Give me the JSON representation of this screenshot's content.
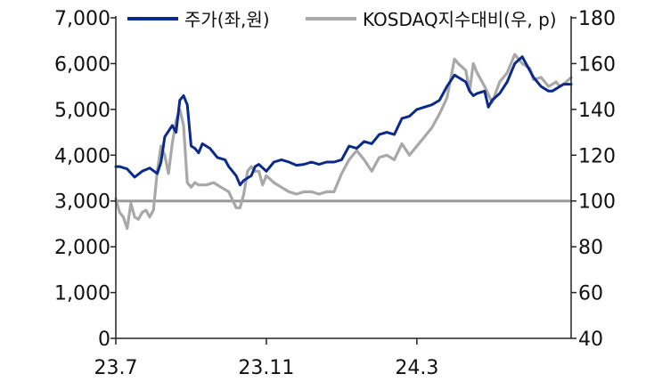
{
  "chart_data": {
    "type": "line",
    "title": "",
    "xlabel": "",
    "legend_position": "top",
    "grid": false,
    "x_tick_labels": [
      "23.7",
      "23.11",
      "24.3"
    ],
    "x_tick_months": [
      0,
      4,
      8
    ],
    "x_range_months": [
      0,
      12.1
    ],
    "y_left": {
      "range": [
        0,
        7000
      ],
      "ticks": [
        "0",
        "1,000",
        "2,000",
        "3,000",
        "4,000",
        "5,000",
        "6,000",
        "7,000"
      ]
    },
    "y_right": {
      "range": [
        40,
        180
      ],
      "ticks": [
        "40",
        "60",
        "80",
        "100",
        "120",
        "140",
        "160",
        "180"
      ]
    },
    "reference_line": {
      "axis": "right",
      "value": 100,
      "color": "#9a9a9a"
    },
    "series": [
      {
        "name": "주가(좌,원)",
        "axis": "left",
        "color": "#0b2a8a",
        "x": [
          0,
          0.1,
          0.3,
          0.5,
          0.7,
          0.9,
          1.1,
          1.2,
          1.3,
          1.5,
          1.6,
          1.7,
          1.8,
          1.9,
          2.0,
          2.1,
          2.2,
          2.3,
          2.5,
          2.7,
          2.9,
          3.0,
          3.2,
          3.3,
          3.4,
          3.5,
          3.6,
          3.7,
          3.8,
          4.0,
          4.2,
          4.4,
          4.6,
          4.8,
          5.0,
          5.2,
          5.4,
          5.6,
          5.8,
          6.0,
          6.2,
          6.4,
          6.6,
          6.8,
          7.0,
          7.2,
          7.4,
          7.6,
          7.8,
          8.0,
          8.2,
          8.4,
          8.6,
          8.8,
          9.0,
          9.1,
          9.3,
          9.4,
          9.5,
          9.6,
          9.8,
          9.9,
          10.0,
          10.2,
          10.4,
          10.6,
          10.8,
          11.0,
          11.1,
          11.2,
          11.3,
          11.4,
          11.5,
          11.6,
          11.7,
          11.8,
          11.9,
          12.1
        ],
        "values": [
          3750,
          3750,
          3700,
          3520,
          3650,
          3720,
          3600,
          3850,
          4400,
          4650,
          4500,
          5200,
          5300,
          5100,
          4200,
          4150,
          4050,
          4250,
          4150,
          3950,
          3900,
          3750,
          3550,
          3350,
          3450,
          3500,
          3550,
          3750,
          3800,
          3650,
          3850,
          3900,
          3850,
          3780,
          3800,
          3850,
          3800,
          3850,
          3850,
          3900,
          4200,
          4150,
          4300,
          4250,
          4450,
          4500,
          4450,
          4800,
          4850,
          5000,
          5050,
          5100,
          5200,
          5500,
          5750,
          5700,
          5600,
          5400,
          5300,
          5350,
          5400,
          5050,
          5200,
          5350,
          5600,
          6000,
          6150,
          5850,
          5700,
          5600,
          5500,
          5450,
          5400,
          5400,
          5450,
          5500,
          5550,
          5550
        ]
      },
      {
        "name": "KOSDAQ지수대비(우, p)",
        "axis": "right",
        "color": "#a8a8a8",
        "x": [
          0,
          0.1,
          0.2,
          0.3,
          0.4,
          0.5,
          0.6,
          0.7,
          0.8,
          0.9,
          1.0,
          1.1,
          1.2,
          1.3,
          1.4,
          1.5,
          1.6,
          1.7,
          1.8,
          1.9,
          2.0,
          2.1,
          2.2,
          2.4,
          2.6,
          2.8,
          3.0,
          3.2,
          3.3,
          3.4,
          3.5,
          3.6,
          3.7,
          3.8,
          3.9,
          4.0,
          4.2,
          4.4,
          4.6,
          4.8,
          5.0,
          5.2,
          5.4,
          5.6,
          5.8,
          6.0,
          6.2,
          6.4,
          6.6,
          6.8,
          7.0,
          7.2,
          7.4,
          7.6,
          7.8,
          8.0,
          8.2,
          8.4,
          8.6,
          8.8,
          9.0,
          9.1,
          9.3,
          9.4,
          9.5,
          9.6,
          9.8,
          10.0,
          10.2,
          10.4,
          10.6,
          10.8,
          11.0,
          11.1,
          11.3,
          11.5,
          11.7,
          11.8,
          11.9,
          12.1
        ],
        "values": [
          101,
          95,
          93,
          88,
          99,
          93,
          92,
          95,
          96,
          93,
          96,
          113,
          124,
          120,
          112,
          125,
          135,
          140,
          133,
          108,
          106,
          108,
          107,
          107,
          108,
          106,
          104,
          97,
          97,
          103,
          113,
          115,
          113,
          113,
          107,
          111,
          108,
          106,
          104,
          103,
          104,
          104,
          103,
          104,
          104,
          112,
          118,
          122,
          118,
          113,
          119,
          120,
          118,
          125,
          120,
          124,
          128,
          132,
          138,
          145,
          162,
          160,
          157,
          148,
          160,
          156,
          150,
          143,
          152,
          156,
          164,
          160,
          158,
          153,
          154,
          150,
          152,
          150,
          151,
          154
        ]
      }
    ]
  }
}
